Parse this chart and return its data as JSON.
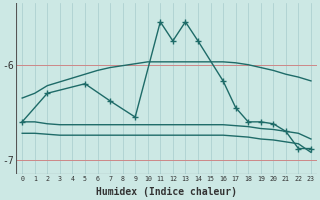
{
  "xlabel": "Humidex (Indice chaleur)",
  "bg_color": "#cce8e4",
  "line_color": "#1e6b68",
  "grid_color_h": "#cc8888",
  "grid_color_v": "#a8cccc",
  "x_values": [
    0,
    1,
    2,
    3,
    4,
    5,
    6,
    7,
    8,
    9,
    10,
    11,
    12,
    13,
    14,
    15,
    16,
    17,
    18,
    19,
    20,
    21,
    22,
    23
  ],
  "series_smooth": [
    -6.35,
    -6.3,
    -6.22,
    -6.18,
    -6.14,
    -6.1,
    -6.06,
    -6.03,
    -6.01,
    -5.99,
    -5.97,
    -5.97,
    -5.97,
    -5.97,
    -5.97,
    -5.97,
    -5.97,
    -5.98,
    -6.0,
    -6.03,
    -6.06,
    -6.1,
    -6.13,
    -6.17
  ],
  "series_mid": [
    -6.6,
    -6.6,
    -6.62,
    -6.63,
    -6.63,
    -6.63,
    -6.63,
    -6.63,
    -6.63,
    -6.63,
    -6.63,
    -6.63,
    -6.63,
    -6.63,
    -6.63,
    -6.63,
    -6.63,
    -6.64,
    -6.65,
    -6.67,
    -6.68,
    -6.7,
    -6.72,
    -6.78
  ],
  "series_low": [
    -6.72,
    -6.72,
    -6.73,
    -6.74,
    -6.74,
    -6.74,
    -6.74,
    -6.74,
    -6.74,
    -6.74,
    -6.74,
    -6.74,
    -6.74,
    -6.74,
    -6.74,
    -6.74,
    -6.74,
    -6.75,
    -6.76,
    -6.78,
    -6.79,
    -6.81,
    -6.83,
    -6.92
  ],
  "spiky_x": [
    0,
    2,
    5,
    7,
    9,
    11,
    12,
    13,
    14,
    16,
    17,
    18,
    19,
    20,
    21,
    22,
    23
  ],
  "spiky_y": [
    -6.6,
    -6.3,
    -6.2,
    -6.38,
    -6.55,
    -5.55,
    -5.75,
    -5.55,
    -5.75,
    -6.17,
    -6.45,
    -6.6,
    -6.6,
    -6.62,
    -6.7,
    -6.88,
    -6.88
  ],
  "ylim": [
    -7.15,
    -5.35
  ],
  "yticks": [
    -7,
    -6
  ],
  "xticks": [
    0,
    1,
    2,
    3,
    4,
    5,
    6,
    7,
    8,
    9,
    10,
    11,
    12,
    13,
    14,
    15,
    16,
    17,
    18,
    19,
    20,
    21,
    22,
    23
  ],
  "font_color": "#333333"
}
